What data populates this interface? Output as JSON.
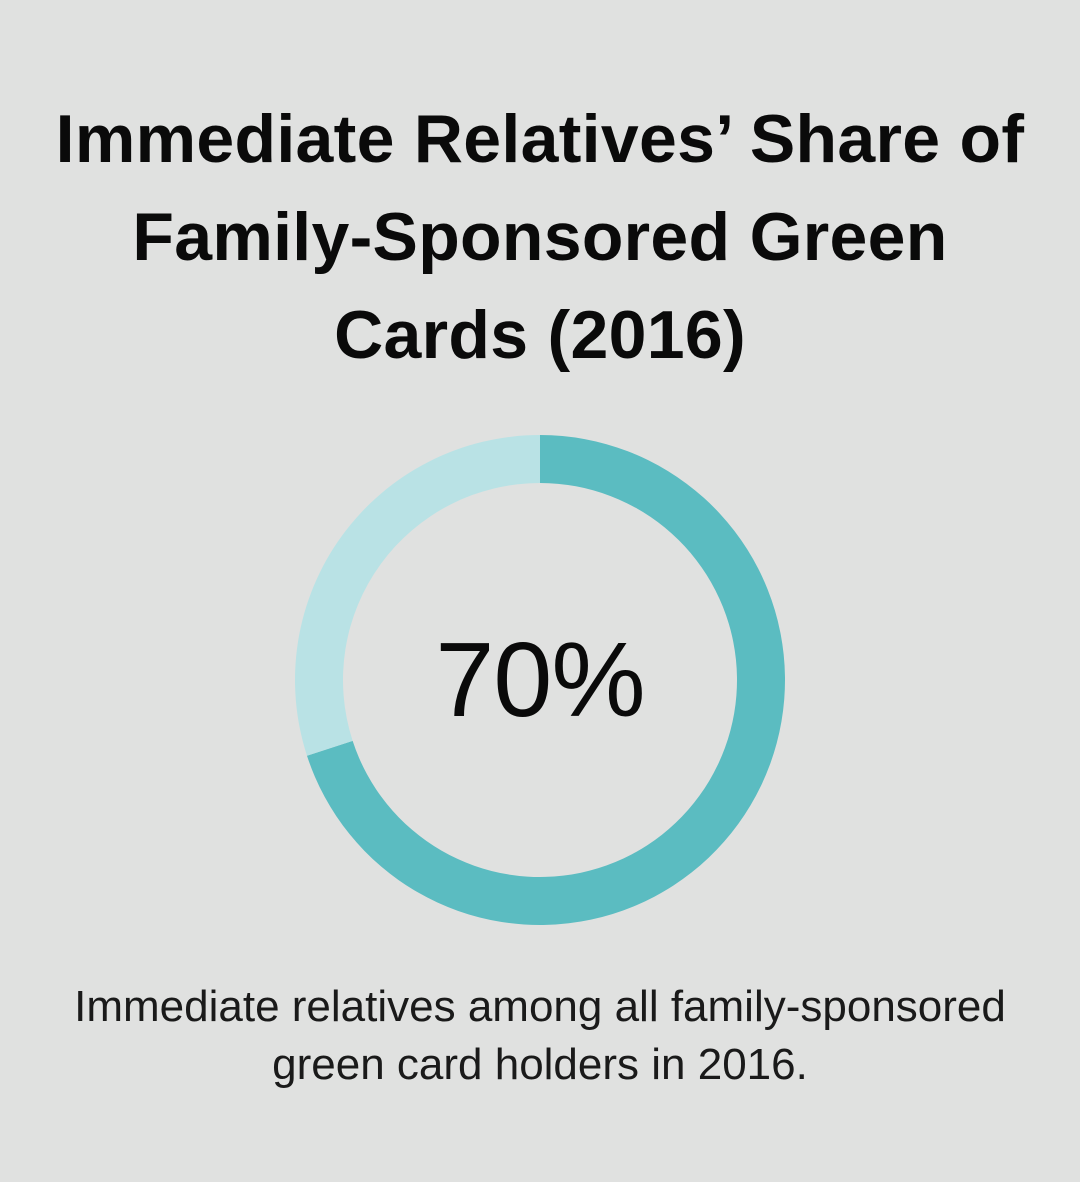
{
  "chart_data": {
    "type": "pie",
    "variant": "donut",
    "title": "Immediate Relatives’ Share of Family-Sponsored Green Cards (2016)",
    "center_label": "70%",
    "slices": [
      {
        "value": 70,
        "color": "#5bbcc1"
      },
      {
        "value": 30,
        "color": "#b9e2e5"
      }
    ],
    "caption": "Immediate relatives among all family-sponsored green card holders in 2016."
  },
  "colors": {
    "background": "#e0e1e0",
    "primary": "#5bbcc1",
    "secondary": "#b9e2e5",
    "text": "#0a0a0a"
  }
}
